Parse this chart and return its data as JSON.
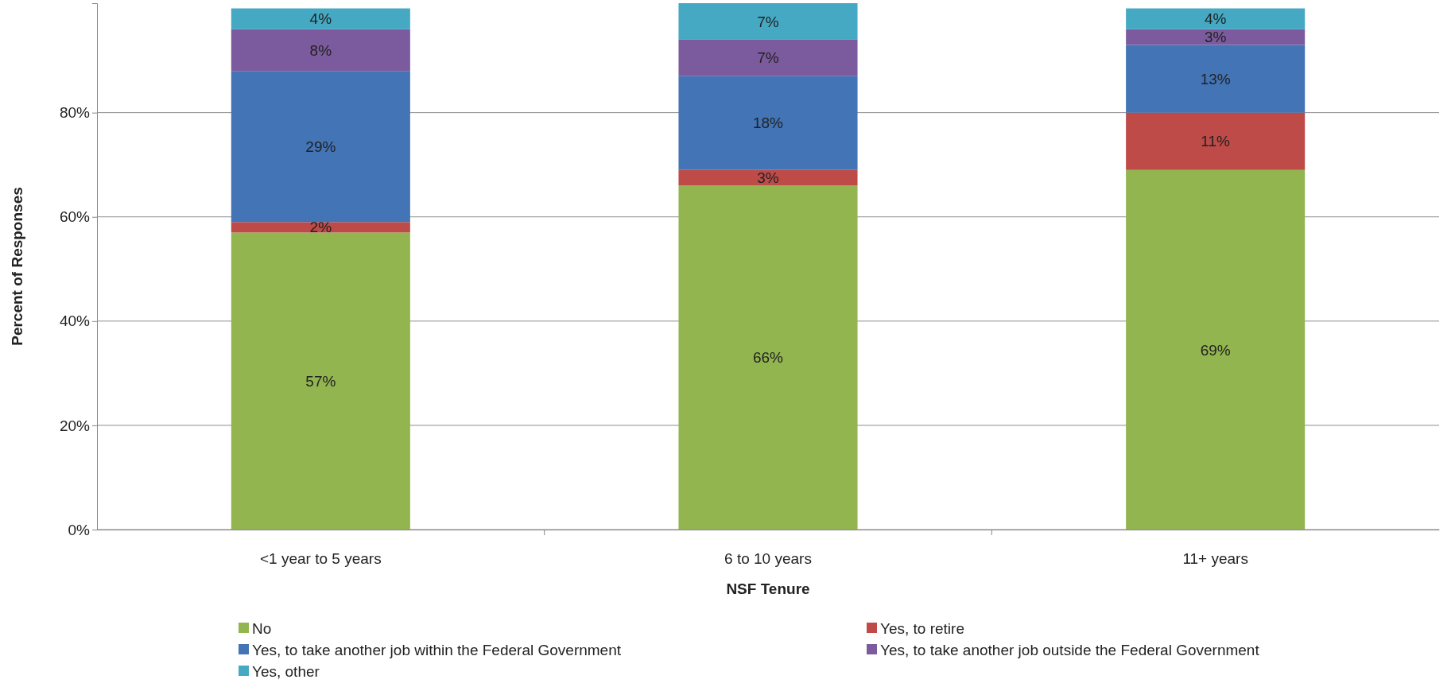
{
  "chart_data": {
    "type": "bar",
    "stacked": true,
    "xlabel": "NSF Tenure",
    "ylabel": "Percent of Responses",
    "categories": [
      "<1 year to 5 years",
      "6 to 10 years",
      "11+ years"
    ],
    "series": [
      {
        "name": "No",
        "color": "#92b54f",
        "values": [
          57,
          66,
          69
        ],
        "value_labels": [
          "57%",
          "66%",
          "69%"
        ]
      },
      {
        "name": "Yes, to retire",
        "color": "#be4b48",
        "values": [
          2,
          3,
          11
        ],
        "value_labels": [
          "2%",
          "3%",
          "11%"
        ]
      },
      {
        "name": "Yes, to take another job within the Federal Government",
        "color": "#4274b6",
        "values": [
          29,
          18,
          13
        ],
        "value_labels": [
          "29%",
          "18%",
          "13%"
        ]
      },
      {
        "name": "Yes, to take another job outside the Federal Government",
        "color": "#7b5b9d",
        "values": [
          8,
          7,
          3
        ],
        "value_labels": [
          "8%",
          "7%",
          "3%"
        ]
      },
      {
        "name": "Yes, other",
        "color": "#45a9c4",
        "values": [
          4,
          7,
          4
        ],
        "value_labels": [
          "4%",
          "7%",
          "4%"
        ]
      }
    ],
    "ylim": [
      0,
      101
    ],
    "yticks": [
      {
        "value": 0,
        "label": "0%"
      },
      {
        "value": 20,
        "label": "20%"
      },
      {
        "value": 40,
        "label": "40%"
      },
      {
        "value": 60,
        "label": "60%"
      },
      {
        "value": 80,
        "label": "80%"
      }
    ],
    "grid": "y",
    "legend": "bottom"
  }
}
